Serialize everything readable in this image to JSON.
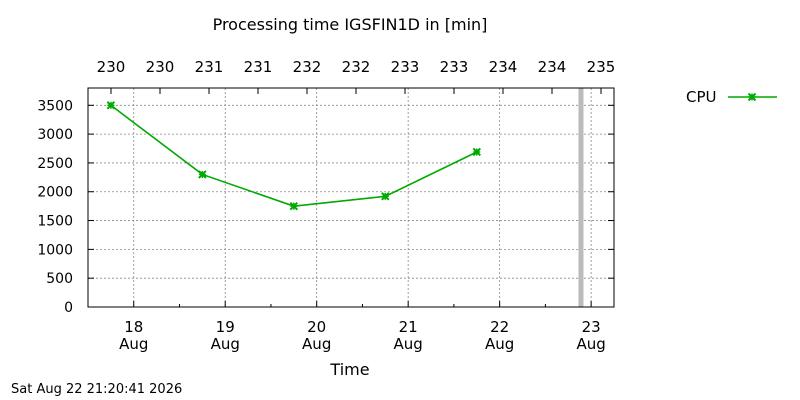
{
  "chart_data": {
    "type": "line",
    "title": "Processing time IGSFIN1D in [min]",
    "xlabel": "Time",
    "ylabel": "",
    "ylim": [
      0,
      3800
    ],
    "yticks": [
      0,
      500,
      1000,
      1500,
      2000,
      2500,
      3000,
      3500
    ],
    "xlim": [
      "2026-08-17 12:00",
      "2026-08-23 06:00"
    ],
    "bottom_ticks": [
      {
        "date": "2026-08-18",
        "day": "18",
        "month": "Aug"
      },
      {
        "date": "2026-08-19",
        "day": "19",
        "month": "Aug"
      },
      {
        "date": "2026-08-20",
        "day": "20",
        "month": "Aug"
      },
      {
        "date": "2026-08-21",
        "day": "21",
        "month": "Aug"
      },
      {
        "date": "2026-08-22",
        "day": "22",
        "month": "Aug"
      },
      {
        "date": "2026-08-23",
        "day": "23",
        "month": "Aug"
      }
    ],
    "top_axis": {
      "ticks": [
        {
          "date": "2026-08-18 00:00",
          "label": "230"
        },
        {
          "date": "2026-08-19 00:00",
          "label": "230"
        },
        {
          "date": "2026-08-19 12:00",
          "label": "231"
        },
        {
          "date": "2026-08-20 12:00",
          "label": "231"
        },
        {
          "date": "2026-08-21 00:00",
          "label": "232"
        },
        {
          "date": "2026-08-21 12:00",
          "label": "232"
        },
        {
          "date": "2026-08-22 00:00",
          "label": "233"
        },
        {
          "date": "2026-08-22 12:00",
          "label": "233"
        },
        {
          "date": "2026-08-23 00:00",
          "label": "234"
        },
        {
          "date": "2026-08-23 12:00",
          "label": "234"
        },
        {
          "date": "2026-08-24 00:00",
          "label": "235"
        }
      ]
    },
    "grid": true,
    "legend_position": "top-right",
    "series": [
      {
        "name": "CPU",
        "color": "#00aa00",
        "marker": "x",
        "points": [
          {
            "x": "2026-08-17 18:00",
            "y": 3500
          },
          {
            "x": "2026-08-18 18:00",
            "y": 2300
          },
          {
            "x": "2026-08-19 18:00",
            "y": 1750
          },
          {
            "x": "2026-08-20 18:00",
            "y": 1920
          },
          {
            "x": "2026-08-21 18:00",
            "y": 2690
          }
        ]
      }
    ],
    "marker_line": {
      "x": "2026-08-22 21:20",
      "color": "#bbbbbb"
    }
  },
  "timestamp": "Sat Aug 22 21:20:41 2026"
}
